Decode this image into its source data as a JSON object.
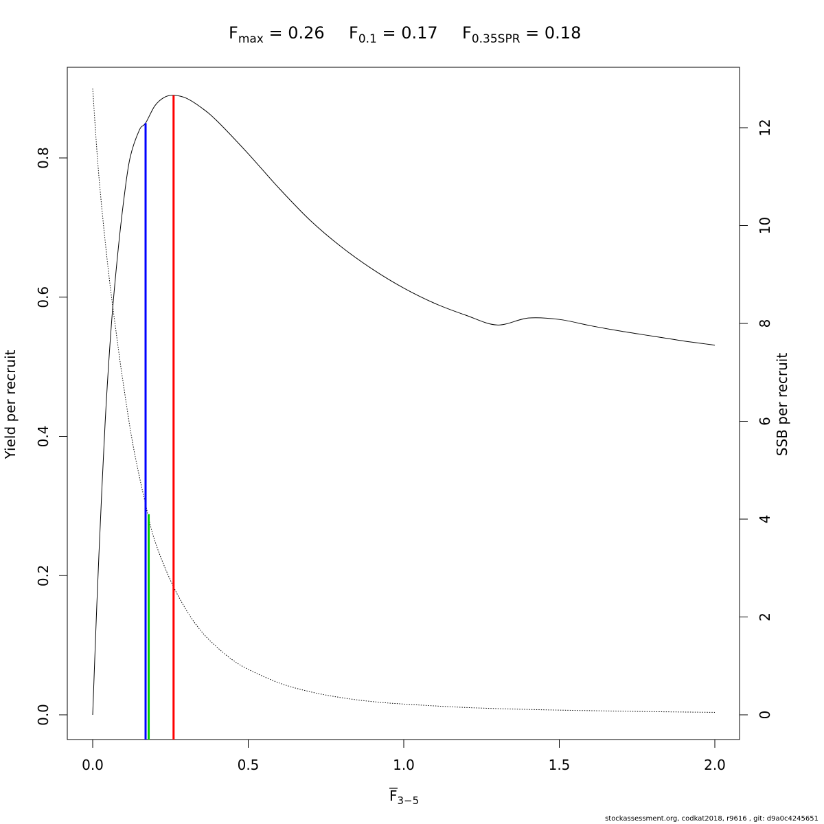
{
  "title": {
    "parts": [
      {
        "base": "F",
        "sub": "max",
        "rest": " = 0.26"
      },
      {
        "base": "F",
        "sub": "0.1",
        "rest": " = 0.17"
      },
      {
        "base": "F",
        "sub": "0.35SPR",
        "rest": " = 0.18"
      }
    ]
  },
  "xlabel": {
    "base": "F",
    "sub": "3−5"
  },
  "ylabel_left": "Yield per recruit",
  "ylabel_right": "SSB per recruit",
  "footer": "stockassessment.org, codkat2018, r9616 , git: d9a0c4245651",
  "chart_data": {
    "type": "line",
    "x_ticks": [
      "0.0",
      "0.5",
      "1.0",
      "1.5",
      "2.0"
    ],
    "y_left_ticks": [
      "0.0",
      "0.2",
      "0.4",
      "0.6",
      "0.8"
    ],
    "y_right_ticks": [
      "0",
      "2",
      "4",
      "6",
      "8",
      "10",
      "12"
    ],
    "xlim": [
      0,
      2
    ],
    "ylim_left": [
      0,
      0.89
    ],
    "ylim_right": [
      0,
      12.8
    ],
    "series": [
      {
        "axis": "left",
        "style": "solid",
        "color": "#000000",
        "x": [
          0,
          0.01,
          0.02,
          0.04,
          0.06,
          0.08,
          0.1,
          0.12,
          0.15,
          0.17,
          0.2,
          0.23,
          0.26,
          0.3,
          0.35,
          0.4,
          0.5,
          0.6,
          0.7,
          0.8,
          0.9,
          1.0,
          1.1,
          1.2,
          1.3,
          1.4,
          1.5,
          1.6,
          1.7,
          1.8,
          1.9,
          2.0
        ],
        "y": [
          0.0,
          0.12,
          0.23,
          0.42,
          0.56,
          0.66,
          0.74,
          0.8,
          0.84,
          0.85,
          0.875,
          0.887,
          0.89,
          0.886,
          0.872,
          0.853,
          0.806,
          0.756,
          0.71,
          0.672,
          0.64,
          0.613,
          0.591,
          0.574,
          0.56,
          0.57,
          0.568,
          0.559,
          0.551,
          0.544,
          0.537,
          0.531
        ]
      },
      {
        "axis": "right",
        "style": "dotted",
        "color": "#000000",
        "x": [
          0,
          0.02,
          0.05,
          0.08,
          0.1,
          0.13,
          0.17,
          0.2,
          0.25,
          0.3,
          0.35,
          0.4,
          0.45,
          0.5,
          0.6,
          0.7,
          0.8,
          0.9,
          1.0,
          1.2,
          1.4,
          1.6,
          1.8,
          2.0
        ],
        "y": [
          12.8,
          11.0,
          9.1,
          7.6,
          6.7,
          5.5,
          4.3,
          3.55,
          2.75,
          2.15,
          1.7,
          1.38,
          1.12,
          0.93,
          0.65,
          0.47,
          0.35,
          0.27,
          0.22,
          0.15,
          0.11,
          0.085,
          0.065,
          0.05
        ]
      }
    ],
    "reference_lines": [
      {
        "name": "Fmax",
        "x": 0.26,
        "y_top_left": 0.89,
        "color": "#ff0000"
      },
      {
        "name": "F0.1",
        "x": 0.17,
        "y_top_left": 0.85,
        "color": "#0000ff"
      },
      {
        "name": "F0.35SPR",
        "x": 0.18,
        "y_top_right": 4.1,
        "color": "#00cc00"
      }
    ]
  }
}
